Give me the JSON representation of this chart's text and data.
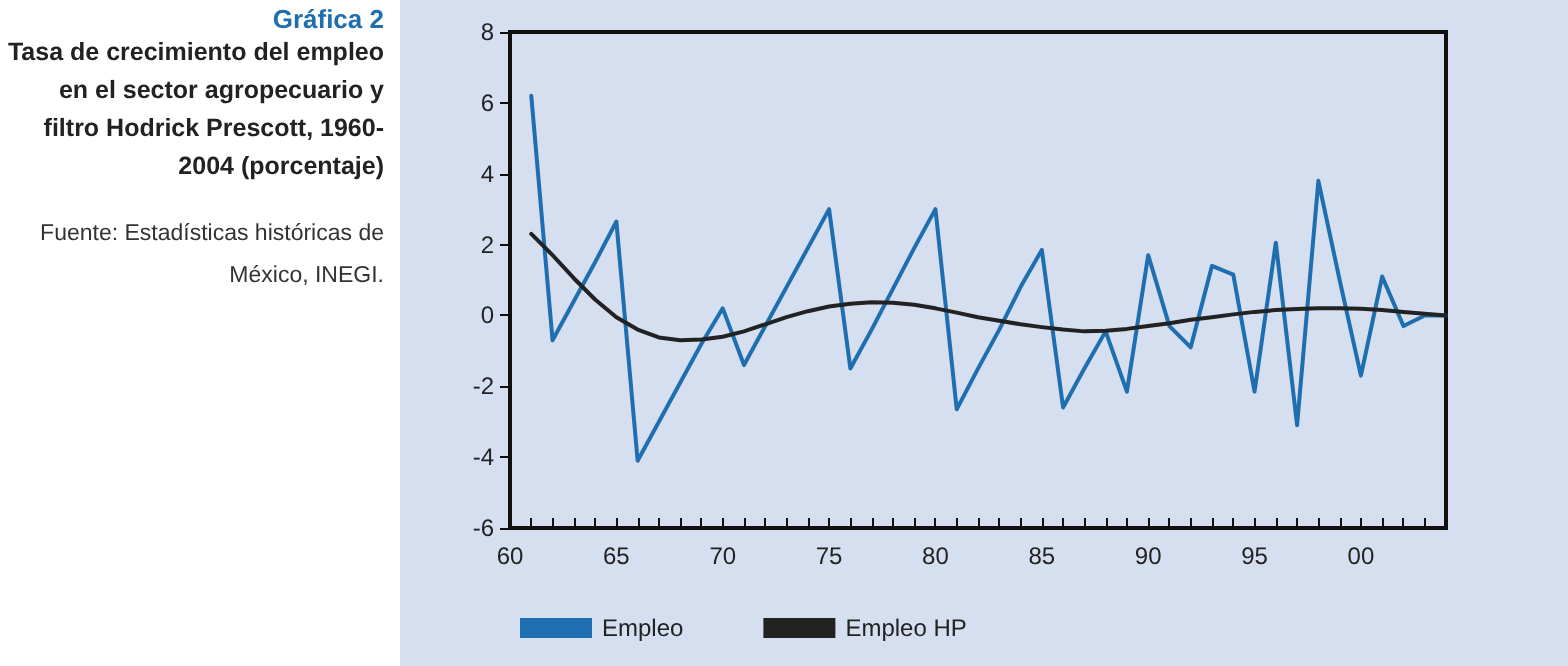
{
  "chart_data": {
    "type": "line",
    "title": "Gráfica 2",
    "subtitle": "Tasa de crecimiento del empleo en el sector agropecuario y filtro Hodrick Prescott, 1960-2004 (porcentaje)",
    "annotations": [
      "Fuente: Estadísticas históricas de México, INEGI."
    ],
    "x": [
      1961,
      1962,
      1963,
      1964,
      1965,
      1966,
      1967,
      1968,
      1969,
      1970,
      1971,
      1972,
      1973,
      1974,
      1975,
      1976,
      1977,
      1978,
      1979,
      1980,
      1981,
      1982,
      1983,
      1984,
      1985,
      1986,
      1987,
      1988,
      1989,
      1990,
      1991,
      1992,
      1993,
      1994,
      1995,
      1996,
      1997,
      1998,
      1999,
      2000,
      2001,
      2002,
      2003,
      2004
    ],
    "series": [
      {
        "name": "Empleo",
        "color": "#1f6fb0",
        "values": [
          6.2,
          -0.7,
          0.4,
          1.5,
          2.65,
          -4.1,
          -3.0,
          -1.9,
          -0.8,
          0.2,
          -1.4,
          -0.3,
          0.8,
          1.9,
          3.0,
          -1.5,
          -0.4,
          0.75,
          1.9,
          3.0,
          -2.65,
          -1.5,
          -0.4,
          0.8,
          1.85,
          -2.6,
          -1.5,
          -0.45,
          -2.15,
          1.7,
          -0.3,
          -0.9,
          1.4,
          1.15,
          -2.15,
          2.05,
          -3.1,
          3.8,
          1.0,
          -1.7,
          1.1,
          -0.3,
          0.0,
          0.0
        ]
      },
      {
        "name": "Empleo HP",
        "color": "#222222",
        "values": [
          2.3,
          1.7,
          1.05,
          0.45,
          -0.05,
          -0.4,
          -0.62,
          -0.7,
          -0.68,
          -0.6,
          -0.45,
          -0.25,
          -0.05,
          0.12,
          0.25,
          0.33,
          0.37,
          0.36,
          0.3,
          0.2,
          0.08,
          -0.05,
          -0.15,
          -0.25,
          -0.33,
          -0.4,
          -0.45,
          -0.43,
          -0.38,
          -0.3,
          -0.22,
          -0.12,
          -0.05,
          0.03,
          0.1,
          0.15,
          0.18,
          0.2,
          0.2,
          0.19,
          0.15,
          0.1,
          0.05,
          0.0
        ]
      }
    ],
    "xlim": [
      1960,
      2004
    ],
    "xticks": [
      {
        "value": 1960,
        "label": "60"
      },
      {
        "value": 1965,
        "label": "65"
      },
      {
        "value": 1970,
        "label": "70"
      },
      {
        "value": 1975,
        "label": "75"
      },
      {
        "value": 1980,
        "label": "80"
      },
      {
        "value": 1985,
        "label": "85"
      },
      {
        "value": 1990,
        "label": "90"
      },
      {
        "value": 1995,
        "label": "95"
      },
      {
        "value": 2000,
        "label": "00"
      }
    ],
    "ylim": [
      -6,
      8
    ],
    "yticks": [
      -6,
      -4,
      -2,
      0,
      2,
      4,
      6,
      8
    ],
    "legend": "bottom",
    "marker": "none",
    "line_style": "solid"
  }
}
